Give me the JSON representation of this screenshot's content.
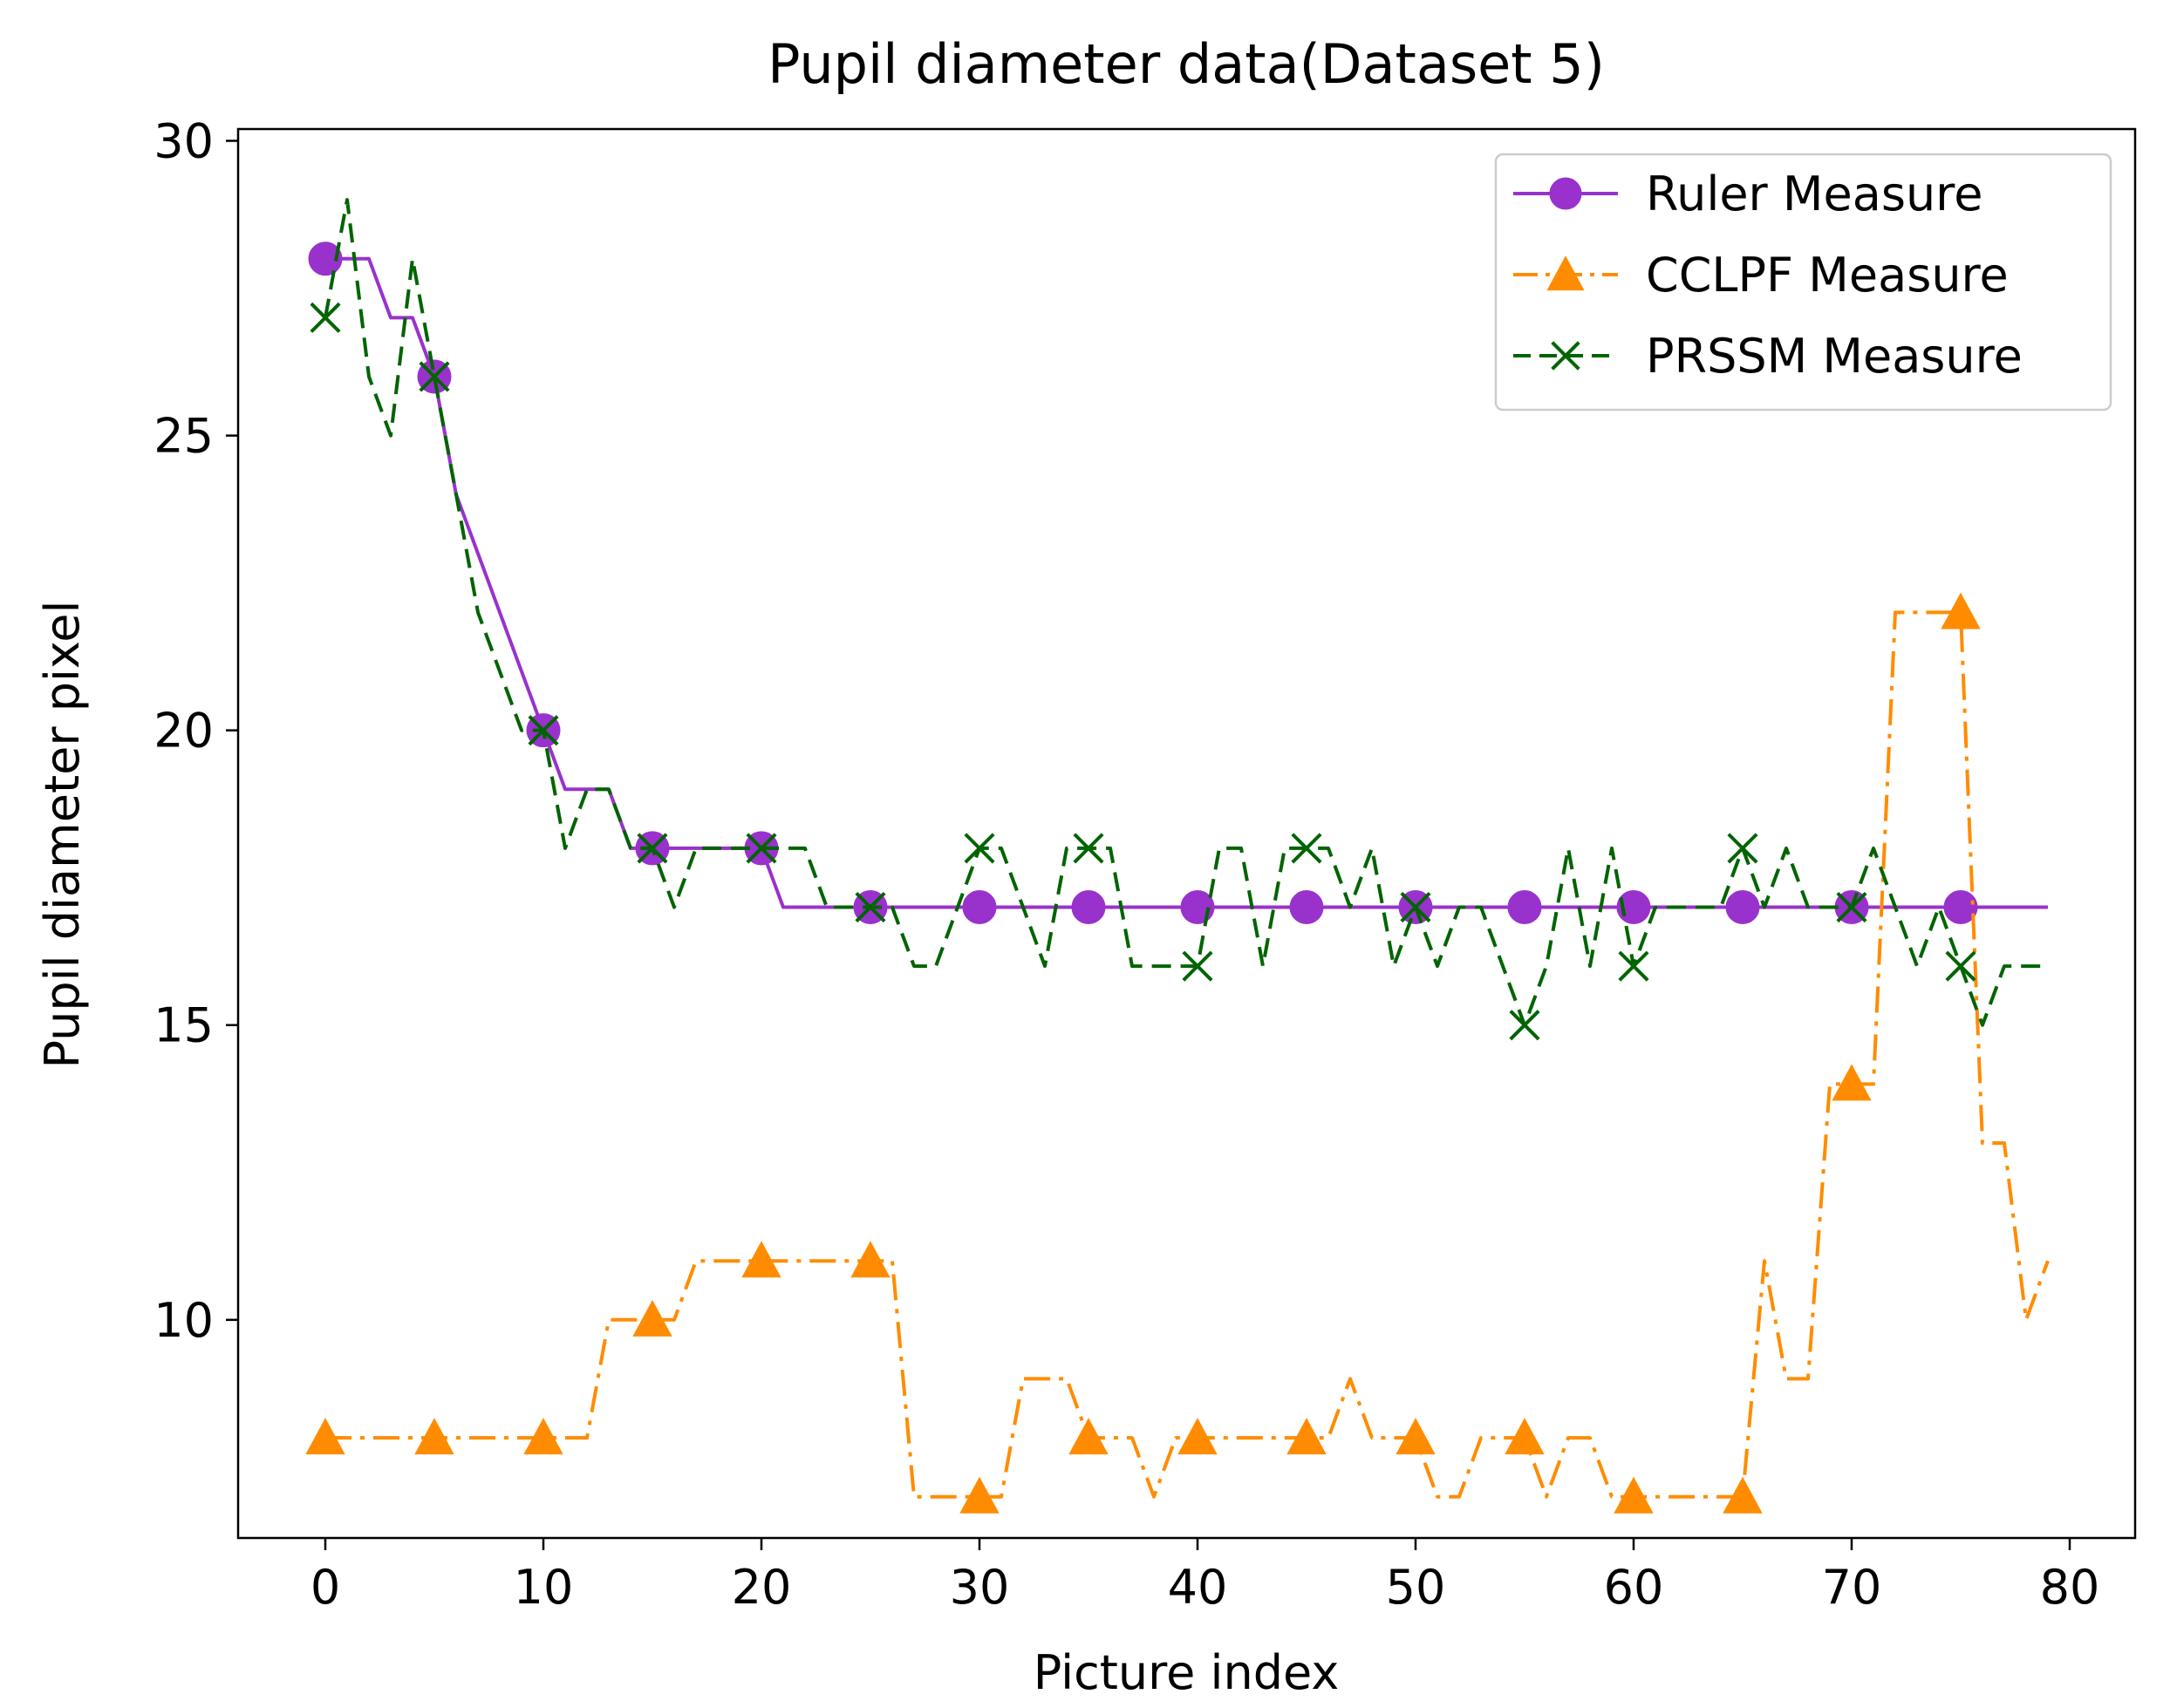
{
  "chart_data": {
    "type": "line",
    "title": "Pupil diameter data(Dataset 5)",
    "xlabel": "Picture index",
    "ylabel": "Pupil diameter pixel",
    "xlim": [
      -4,
      83
    ],
    "ylim": [
      6.3,
      30.2
    ],
    "xticks": [
      0,
      10,
      20,
      30,
      40,
      50,
      60,
      70,
      80
    ],
    "yticks": [
      10,
      15,
      20,
      25,
      30
    ],
    "legend_position": "top-right",
    "x": [
      0,
      1,
      2,
      3,
      4,
      5,
      6,
      7,
      8,
      9,
      10,
      11,
      12,
      13,
      14,
      15,
      16,
      17,
      18,
      19,
      20,
      21,
      22,
      23,
      24,
      25,
      26,
      27,
      28,
      29,
      30,
      31,
      32,
      33,
      34,
      35,
      36,
      37,
      38,
      39,
      40,
      41,
      42,
      43,
      44,
      45,
      46,
      47,
      48,
      49,
      50,
      51,
      52,
      53,
      54,
      55,
      56,
      57,
      58,
      59,
      60,
      61,
      62,
      63,
      64,
      65,
      66,
      67,
      68,
      69,
      70,
      71,
      72,
      73,
      74,
      75,
      76,
      77,
      78,
      79
    ],
    "series": [
      {
        "name": "Ruler Measure",
        "color": "#9932CC",
        "linestyle": "solid",
        "marker": "circle",
        "markevery": 5,
        "values": [
          28,
          28,
          28,
          27,
          27,
          26,
          24,
          23,
          22,
          21,
          20,
          19,
          19,
          19,
          18,
          18,
          18,
          18,
          18,
          18,
          18,
          17,
          17,
          17,
          17,
          17,
          17,
          17,
          17,
          17,
          17,
          17,
          17,
          17,
          17,
          17,
          17,
          17,
          17,
          17,
          17,
          17,
          17,
          17,
          17,
          17,
          17,
          17,
          17,
          17,
          17,
          17,
          17,
          17,
          17,
          17,
          17,
          17,
          17,
          17,
          17,
          17,
          17,
          17,
          17,
          17,
          17,
          17,
          17,
          17,
          17,
          17,
          17,
          17,
          17,
          17,
          17,
          17,
          17,
          17
        ]
      },
      {
        "name": "CCLPF Measure",
        "color": "#FF8C00",
        "linestyle": "dashdot",
        "marker": "triangle",
        "markevery": 5,
        "values": [
          8,
          8,
          8,
          8,
          8,
          8,
          8,
          8,
          8,
          8,
          8,
          8,
          8,
          10,
          10,
          10,
          10,
          11,
          11,
          11,
          11,
          11,
          11,
          11,
          11,
          11,
          11,
          7,
          7,
          7,
          7,
          7,
          9,
          9,
          9,
          8,
          8,
          8,
          7,
          8,
          8,
          8,
          8,
          8,
          8,
          8,
          8,
          9,
          8,
          8,
          8,
          7,
          7,
          8,
          8,
          8,
          7,
          8,
          8,
          7,
          7,
          7,
          7,
          7,
          7,
          7,
          11,
          9,
          9,
          14,
          14,
          14,
          22,
          22,
          22,
          22,
          13,
          13,
          10,
          11
        ]
      },
      {
        "name": "PRSSM Measure",
        "color": "#006400",
        "linestyle": "dashed",
        "marker": "x",
        "markevery": 5,
        "values": [
          27,
          29,
          26,
          25,
          28,
          26,
          24,
          22,
          21,
          20,
          20,
          18,
          19,
          19,
          18,
          18,
          17,
          18,
          18,
          18,
          18,
          18,
          18,
          17,
          17,
          17,
          17,
          16,
          16,
          17,
          18,
          18,
          17,
          16,
          18,
          18,
          18,
          16,
          16,
          16,
          16,
          18,
          18,
          16,
          18,
          18,
          18,
          17,
          18,
          16,
          17,
          16,
          17,
          17,
          16,
          15,
          16,
          18,
          16,
          18,
          16,
          17,
          17,
          17,
          17,
          18,
          17,
          18,
          17,
          17,
          17,
          18,
          17,
          16,
          17,
          16,
          15,
          16,
          16,
          16
        ]
      }
    ]
  }
}
